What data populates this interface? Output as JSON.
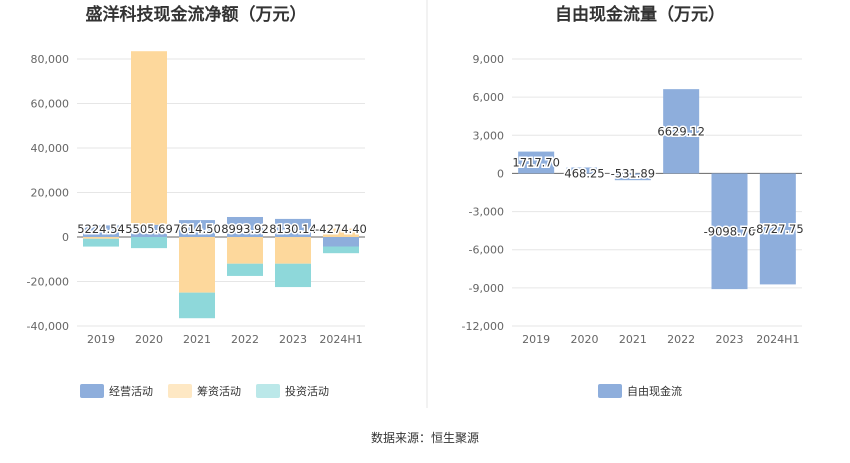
{
  "chart_data": [
    {
      "type": "bar",
      "stacked": true,
      "title": "盛洋科技现金流净额（万元）",
      "categories": [
        "2019",
        "2020",
        "2021",
        "2022",
        "2023",
        "2024H1"
      ],
      "ylim": [
        -40000,
        80000
      ],
      "yticks": [
        "80,000",
        "60,000",
        "40,000",
        "20,000",
        "0",
        "-20,000",
        "-40,000"
      ],
      "ytick_values": [
        80000,
        60000,
        40000,
        20000,
        0,
        -20000,
        -40000
      ],
      "series": [
        {
          "name": "经营活动",
          "color": "#8eaedc",
          "values": [
            5224.54,
            5505.69,
            7614.5,
            8993.92,
            8130.14,
            -4274.4
          ],
          "labels": [
            "5224.54",
            "5505.69",
            "7614.50",
            "8993.92",
            "8130.14",
            "-4274.40"
          ]
        },
        {
          "name": "筹资活动",
          "color": "#fdd89c",
          "values": [
            -800,
            78000,
            -25000,
            -12000,
            -12000,
            3800
          ]
        },
        {
          "name": "投资活动",
          "color": "#8ed8da",
          "values": [
            -3500,
            -5000,
            -11500,
            -5500,
            -10500,
            -3000
          ]
        }
      ],
      "legend": "bottom"
    },
    {
      "type": "bar",
      "title": "自由现金流量（万元）",
      "categories": [
        "2019",
        "2020",
        "2021",
        "2022",
        "2023",
        "2024H1"
      ],
      "ylim": [
        -12000,
        9000
      ],
      "yticks": [
        "9,000",
        "6,000",
        "3,000",
        "0",
        "-3,000",
        "-6,000",
        "-9,000",
        "-12,000"
      ],
      "ytick_values": [
        9000,
        6000,
        3000,
        0,
        -3000,
        -6000,
        -9000,
        -12000
      ],
      "series": [
        {
          "name": "自由现金流",
          "color": "#8eaedc",
          "values": [
            1717.7,
            468.25,
            -531.89,
            6629.12,
            -9098.76,
            -8727.75
          ],
          "labels": [
            "1717.70",
            "468.25",
            "-531.89",
            "6629.12",
            "-9098.76",
            "-8727.75"
          ]
        }
      ],
      "legend": "bottom"
    }
  ],
  "source": "数据来源：恒生聚源"
}
